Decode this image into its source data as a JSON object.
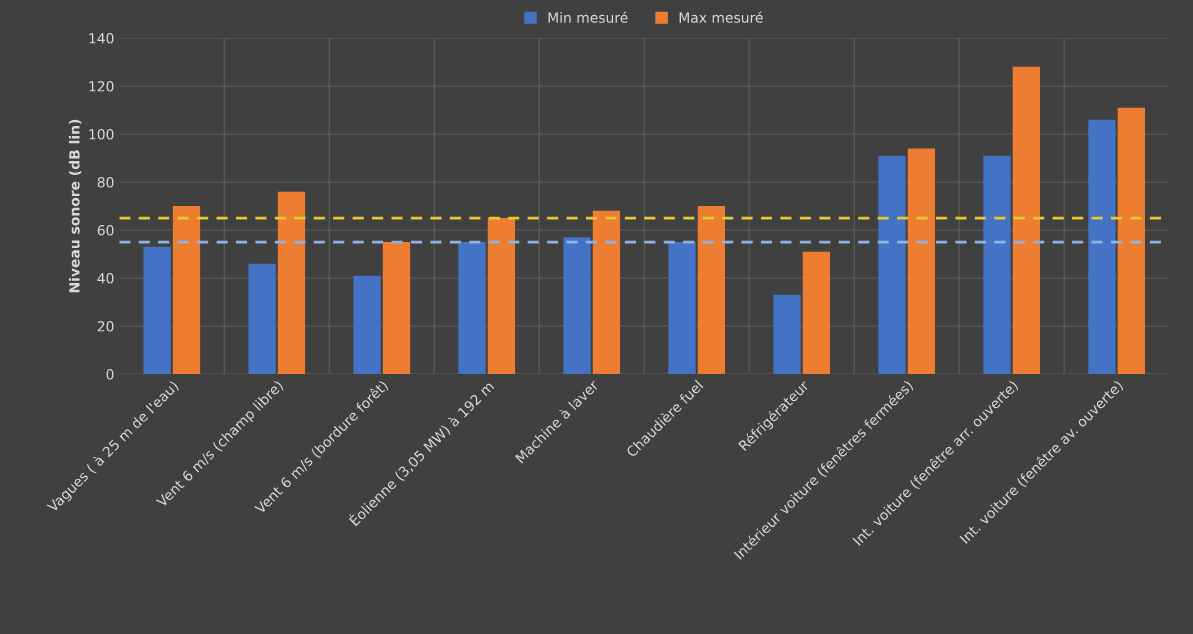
{
  "chart_data": {
    "type": "bar",
    "ylabel": "Niveau sonore (dB lin)",
    "categories": [
      "Vagues ( à 25 m de l'eau)",
      "Vent 6 m/s (champ libre)",
      "Vent 6 m/s (bordure forêt)",
      "Éolienne (3,05 MW) à 192 m",
      "Machine à laver",
      "Chaudière fuel",
      "Réfrigérateur",
      "Intérieur voiture (fenêtres fermées)",
      "Int. voiture (fenêtre arr. ouverte)",
      "Int. voiture (fenêtre av. ouverte)"
    ],
    "series": [
      {
        "name": "Min mesuré",
        "color": "#4472c4",
        "values": [
          53,
          46,
          41,
          55,
          57,
          55,
          33,
          91,
          91,
          106
        ]
      },
      {
        "name": "Max mesuré",
        "color": "#ed7d31",
        "values": [
          70,
          76,
          55,
          65,
          68,
          70,
          51,
          94,
          128,
          111
        ]
      }
    ],
    "ylim": [
      0,
      140
    ],
    "yticks": [
      0,
      20,
      40,
      60,
      80,
      100,
      120,
      140
    ],
    "ref_lines": [
      {
        "axis": "y",
        "value": 65,
        "color": "#e8c832",
        "line_style": "dashed"
      },
      {
        "axis": "y",
        "value": 55,
        "color": "#8fb4e3",
        "line_style": "dashed"
      }
    ],
    "grid": true,
    "legend": "top"
  }
}
